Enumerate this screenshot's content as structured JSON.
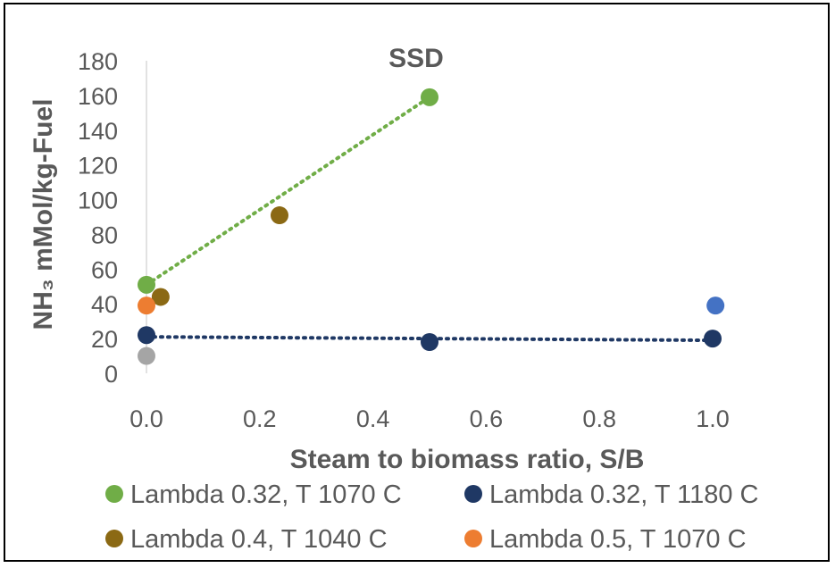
{
  "chart_data": {
    "type": "scatter",
    "title": "SSD",
    "xlabel": "Steam to biomass ratio, S/B",
    "ylabel": "NH₃ mMol/kg-Fuel",
    "xlim": [
      0.0,
      1.1
    ],
    "ylim": [
      0,
      180
    ],
    "x_ticks": [
      "0.0",
      "0.2",
      "0.4",
      "0.6",
      "0.8",
      "1.0"
    ],
    "x_tick_values": [
      0.0,
      0.2,
      0.4,
      0.6,
      0.8,
      1.0
    ],
    "y_ticks": [
      "0",
      "20",
      "40",
      "60",
      "80",
      "100",
      "120",
      "140",
      "160",
      "180"
    ],
    "y_tick_values": [
      0,
      20,
      40,
      60,
      80,
      100,
      120,
      140,
      160,
      180
    ],
    "grid": false,
    "legend_position": "bottom",
    "series": [
      {
        "name": "Lambda 0.32, T 1070 C",
        "color": "#70AD47",
        "x": [
          0.0,
          0.5
        ],
        "y": [
          51,
          159
        ],
        "trendline": true
      },
      {
        "name": "Lambda 0.32, T 1180 C",
        "color": "#1F3864",
        "x": [
          0.0,
          0.5,
          1.0
        ],
        "y": [
          22,
          18,
          20
        ],
        "trendline": true
      },
      {
        "name": "Lambda 0.4, T 1040 C",
        "color": "#8B6914",
        "x": [
          0.025,
          0.235
        ],
        "y": [
          44,
          91
        ],
        "trendline": false
      },
      {
        "name": "Lambda 0.5, T 1070 C",
        "color": "#ED7D31",
        "x": [
          0.0
        ],
        "y": [
          39
        ],
        "trendline": false
      }
    ],
    "unlabeled_points": [
      {
        "color": "#A5A5A5",
        "x": 0.0,
        "y": 10
      },
      {
        "color": "#4472C4",
        "x": 1.005,
        "y": 39
      }
    ]
  }
}
